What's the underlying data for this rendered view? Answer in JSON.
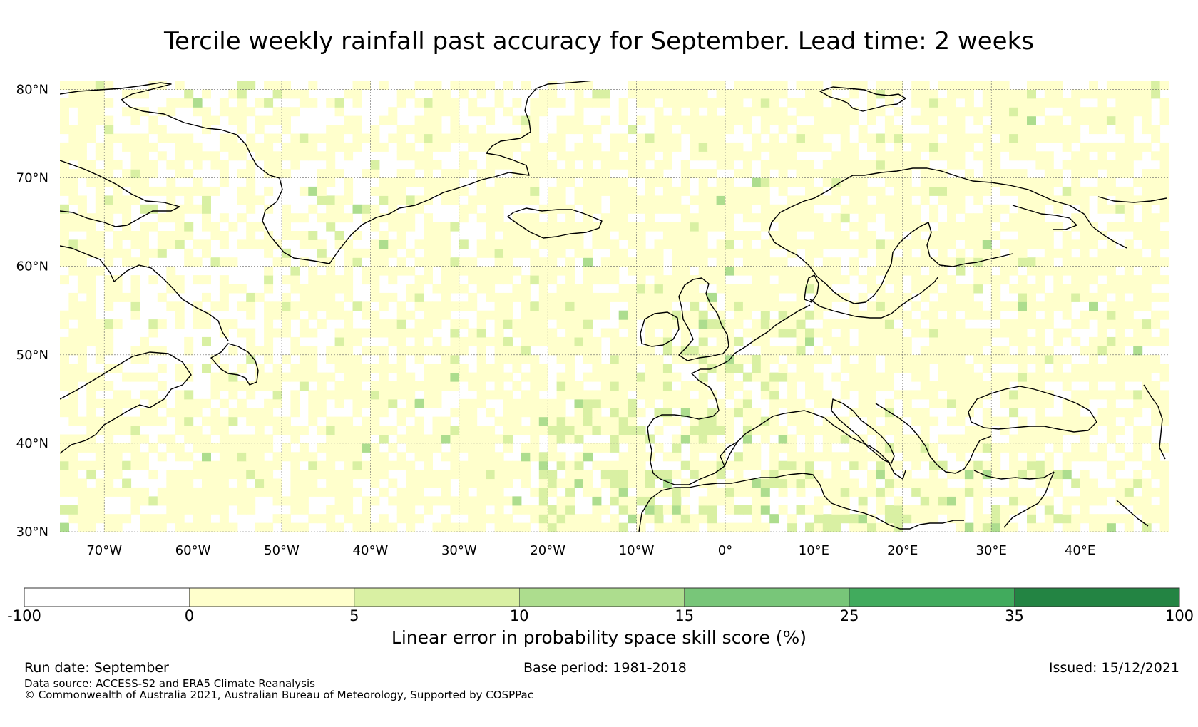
{
  "title": "Tercile weekly rainfall past accuracy for September. Lead time: 2 weeks",
  "map": {
    "projection": "equirectangular",
    "lon_range": [
      -75,
      50
    ],
    "lat_range": [
      30,
      81
    ],
    "lon_ticks": [
      {
        "value": -70,
        "label": "70°W"
      },
      {
        "value": -60,
        "label": "60°W"
      },
      {
        "value": -50,
        "label": "50°W"
      },
      {
        "value": -40,
        "label": "40°W"
      },
      {
        "value": -30,
        "label": "30°W"
      },
      {
        "value": -20,
        "label": "20°W"
      },
      {
        "value": -10,
        "label": "10°W"
      },
      {
        "value": 0,
        "label": "0°"
      },
      {
        "value": 10,
        "label": "10°E"
      },
      {
        "value": 20,
        "label": "20°E"
      },
      {
        "value": 30,
        "label": "30°E"
      },
      {
        "value": 40,
        "label": "40°E"
      }
    ],
    "lat_ticks": [
      {
        "value": 80,
        "label": "80°N"
      },
      {
        "value": 70,
        "label": "70°N"
      },
      {
        "value": 60,
        "label": "60°N"
      },
      {
        "value": 50,
        "label": "50°N"
      },
      {
        "value": 40,
        "label": "40°N"
      },
      {
        "value": 30,
        "label": "30°N"
      }
    ],
    "gridlines": true,
    "coastline_color": "#000000"
  },
  "colorbar": {
    "label": "Linear error in probability space skill score (%)",
    "boundaries": [
      "-100",
      "0",
      "5",
      "10",
      "15",
      "25",
      "35",
      "100"
    ],
    "colors": [
      "#ffffff",
      "#ffffcc",
      "#d9f0a3",
      "#addd8e",
      "#78c679",
      "#41ab5d",
      "#238443"
    ]
  },
  "footer": {
    "run_date": "Run date: September",
    "base_period": "Base period: 1981-2018",
    "issued": "Issued: 15/12/2021",
    "data_source": "Data source: ACCESS-S2 and ERA5 Climate Reanalysis",
    "copyright": "© Commonwealth of Australia 2021, Australian Bureau of Meteorology, Supported by COSPPac"
  }
}
